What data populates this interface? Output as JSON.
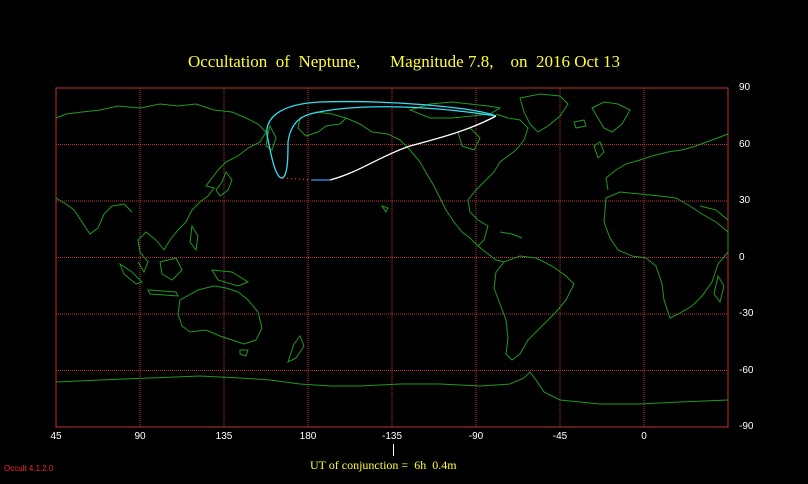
{
  "title": "Occultation  of  Neptune,       Magnitude 7.8,    on  2016 Oct 13",
  "map": {
    "x_ticks": [
      {
        "label": "90",
        "lon": 90
      },
      {
        "label": "135",
        "lon": 135
      },
      {
        "label": "180",
        "lon": 180
      },
      {
        "label": "-135",
        "lon": -135
      },
      {
        "label": "-90",
        "lon": -90
      },
      {
        "label": "-45",
        "lon": -45
      },
      {
        "label": "0",
        "lon": 0
      },
      {
        "label": "45",
        "lon": 45
      }
    ],
    "y_ticks": [
      {
        "label": "90",
        "lat": 90
      },
      {
        "label": "60",
        "lat": 60
      },
      {
        "label": "30",
        "lat": 30
      },
      {
        "label": "0",
        "lat": 0
      },
      {
        "label": "-30",
        "lat": -30
      },
      {
        "label": "-60",
        "lat": -60
      },
      {
        "label": "-90",
        "lat": -90
      }
    ],
    "colors": {
      "grid": "#c03030",
      "coast": "#1f9a1f",
      "path_day": "#ffffff",
      "path_twilight": "#3399ff",
      "path_limit": "#33ddee",
      "path_dotted": "#ff3030"
    }
  },
  "conjunction": {
    "label": "UT of conjunction =  6h  0.4m"
  },
  "version": "Occult 4.1.2.0"
}
